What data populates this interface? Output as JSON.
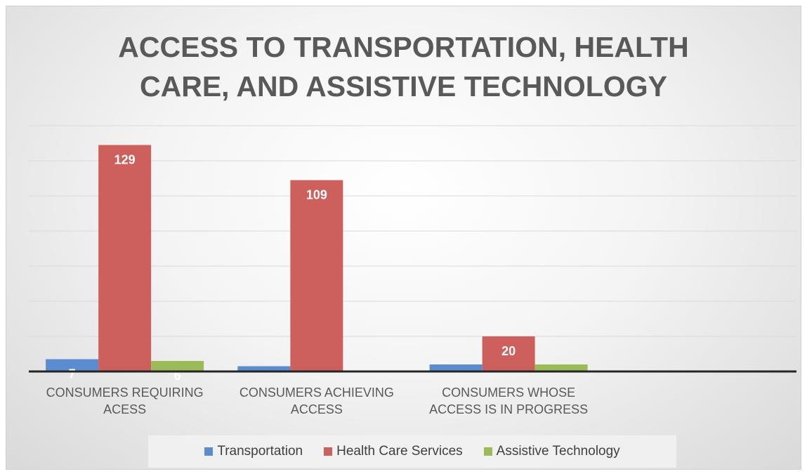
{
  "chart_data": {
    "type": "bar",
    "title": "ACCESS TO TRANSPORTATION, HEALTH CARE, AND ASSISTIVE TECHNOLOGY",
    "categories": [
      "CONSUMERS REQUIRING ACESS",
      "CONSUMERS ACHIEVING ACCESS",
      "CONSUMERS WHOSE ACCESS IS IN PROGRESS",
      null
    ],
    "series": [
      {
        "name": "Transportation",
        "color": "#5b8ccf",
        "values": [
          7,
          3,
          4,
          null
        ],
        "value_labels": [
          "7",
          null,
          null,
          null
        ]
      },
      {
        "name": "Health Care Services",
        "color": "#cd605d",
        "values": [
          129,
          109,
          20,
          null
        ],
        "value_labels": [
          "129",
          "109",
          "20",
          null
        ]
      },
      {
        "name": "Assistive Technology",
        "color": "#9bbb59",
        "values": [
          6,
          0.5,
          4,
          null
        ],
        "value_labels": [
          "6",
          null,
          null,
          null
        ]
      }
    ],
    "ylim": [
      0,
      140
    ],
    "yticks": [
      0,
      20,
      40,
      60,
      80,
      100,
      120,
      140
    ],
    "grid": true,
    "legend": "bottom"
  }
}
